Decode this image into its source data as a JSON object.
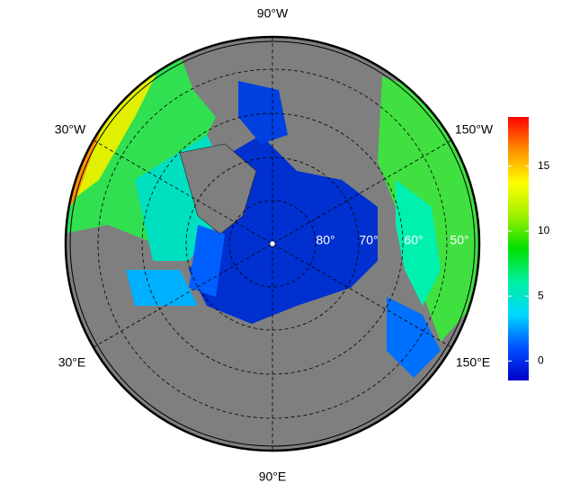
{
  "map": {
    "longitude_labels": [
      "90°W",
      "30°W",
      "150°W",
      "30°E",
      "150°E",
      "90°E"
    ],
    "latitude_labels": [
      "80°",
      "70°",
      "60°",
      "50°"
    ],
    "colorbar": {
      "lim": [
        -1.5,
        18.8
      ],
      "ticks": [
        0,
        5,
        10,
        15
      ],
      "colors": [
        "#0000c8",
        "#0050ff",
        "#00d8ff",
        "#00f0a0",
        "#00e000",
        "#a0f000",
        "#ffff00",
        "#ff9000",
        "#ff0000"
      ]
    }
  }
}
